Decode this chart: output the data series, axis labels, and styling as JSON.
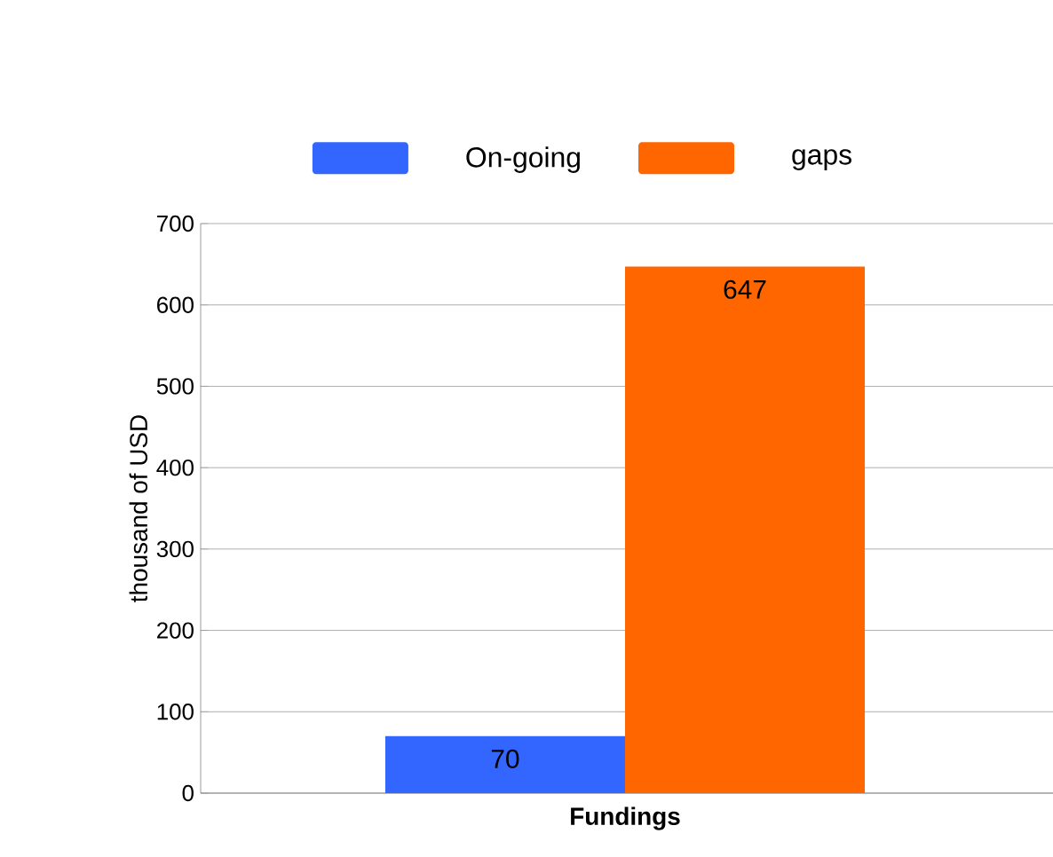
{
  "chart_data": {
    "type": "bar",
    "categories": [
      "Fundings"
    ],
    "series": [
      {
        "name": "On-going",
        "color": "#3366ff",
        "values": [
          70
        ]
      },
      {
        "name": "gaps",
        "color": "#ff6600",
        "values": [
          647
        ]
      }
    ],
    "ylabel": "thousand of USD",
    "ylim": [
      0,
      700
    ],
    "yticks": [
      0,
      100,
      200,
      300,
      400,
      500,
      600,
      700
    ],
    "grid": "y",
    "legend": "top",
    "data_labels": true
  }
}
